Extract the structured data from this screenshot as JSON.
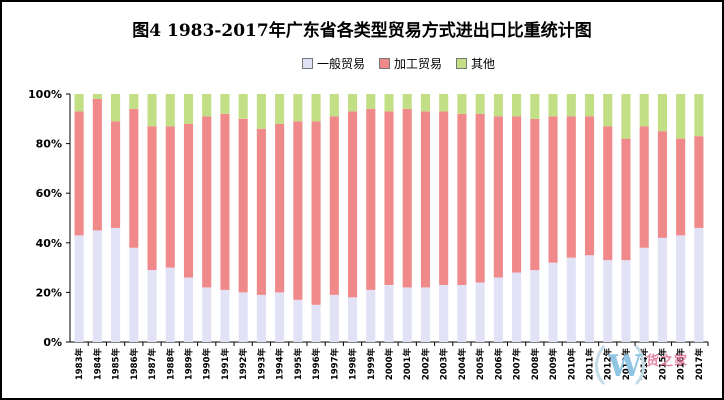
{
  "chart_data": {
    "type": "bar",
    "stacked": true,
    "title": "图4 1983-2017年广东省各类型贸易方式进出口比重统计图",
    "xlabel": "",
    "ylabel": "",
    "ylim": [
      0,
      100
    ],
    "y_ticks": [
      "0%",
      "20%",
      "40%",
      "60%",
      "80%",
      "100%"
    ],
    "legend_position": "top",
    "categories": [
      "1983年",
      "1984年",
      "1985年",
      "1986年",
      "1987年",
      "1988年",
      "1989年",
      "1990年",
      "1991年",
      "1992年",
      "1993年",
      "1994年",
      "1995年",
      "1996年",
      "1997年",
      "1998年",
      "1999年",
      "2000年",
      "2001年",
      "2002年",
      "2003年",
      "2004年",
      "2005年",
      "2006年",
      "2007年",
      "2008年",
      "2009年",
      "2010年",
      "2011年",
      "2012年",
      "2013年",
      "2014年",
      "2015年",
      "2016年",
      "2017年"
    ],
    "series": [
      {
        "name": "一般贸易",
        "color": "#e2e2f6",
        "values": [
          43,
          45,
          46,
          38,
          29,
          30,
          26,
          22,
          21,
          20,
          19,
          20,
          17,
          15,
          19,
          18,
          21,
          23,
          22,
          22,
          23,
          23,
          24,
          26,
          28,
          29,
          32,
          34,
          35,
          33,
          33,
          38,
          42,
          43,
          46
        ]
      },
      {
        "name": "加工贸易",
        "color": "#f08a8a",
        "values": [
          50,
          53,
          43,
          56,
          58,
          57,
          62,
          69,
          71,
          70,
          67,
          68,
          72,
          74,
          72,
          75,
          73,
          70,
          72,
          71,
          70,
          69,
          68,
          65,
          63,
          61,
          59,
          57,
          56,
          54,
          49,
          49,
          43,
          39,
          37
        ]
      },
      {
        "name": "其他",
        "color": "#c3df85",
        "values": [
          7,
          2,
          11,
          6,
          13,
          13,
          12,
          9,
          8,
          10,
          14,
          12,
          11,
          11,
          9,
          7,
          6,
          7,
          6,
          7,
          7,
          8,
          8,
          9,
          9,
          10,
          9,
          9,
          9,
          13,
          18,
          13,
          15,
          18,
          17
        ]
      }
    ]
  },
  "watermark": {
    "text": "货之家"
  }
}
